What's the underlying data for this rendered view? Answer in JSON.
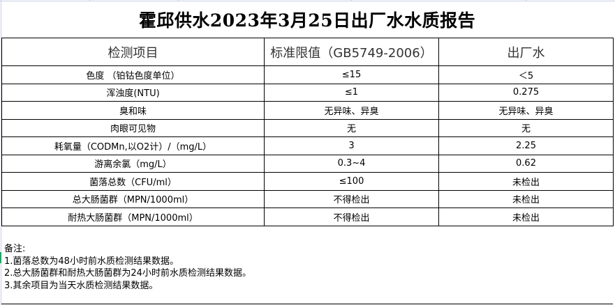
{
  "title": "霍邱供水2023年3月25日出厂水水质报告",
  "headers": [
    "检测项目",
    "标准限值（GB5749-2006）",
    "出厂水"
  ],
  "rows": [
    {
      "item": "色度 （铂钴色度单位）",
      "limit": "≤15",
      "value": "＜5"
    },
    {
      "item": "浑浊度(NTU)",
      "limit": "≤1",
      "value": "0.275"
    },
    {
      "item": "臭和味",
      "limit": "无异味、异臭",
      "value": "无异味、异臭"
    },
    {
      "item": "肉眼可见物",
      "limit": "无",
      "value": "无"
    },
    {
      "item": "耗氧量（CODMn,以O2计）/（mg/L）",
      "limit": "3",
      "value": "2.25"
    },
    {
      "item": "游离余氯（mg/L）",
      "limit": "0.3~4",
      "value": "0.62"
    },
    {
      "item": "菌落总数（CFU/ml）",
      "limit": "≤100",
      "value": "未检出"
    },
    {
      "item": "总大肠菌群（MPN/1000ml）",
      "limit": "不得检出",
      "value": "未检出"
    },
    {
      "item": "耐热大肠菌群（MPN/1000ml）",
      "limit": "不得检出",
      "value": "未检出"
    }
  ],
  "notes": {
    "heading": "备注:",
    "lines": [
      "1.菌落总数为48小时前水质检测结果数据。",
      "2.总大肠菌群和耐热大肠菌群为24小时前水质检测结果数据。",
      "3.其余项目为当天水质检测结果数据。"
    ]
  }
}
